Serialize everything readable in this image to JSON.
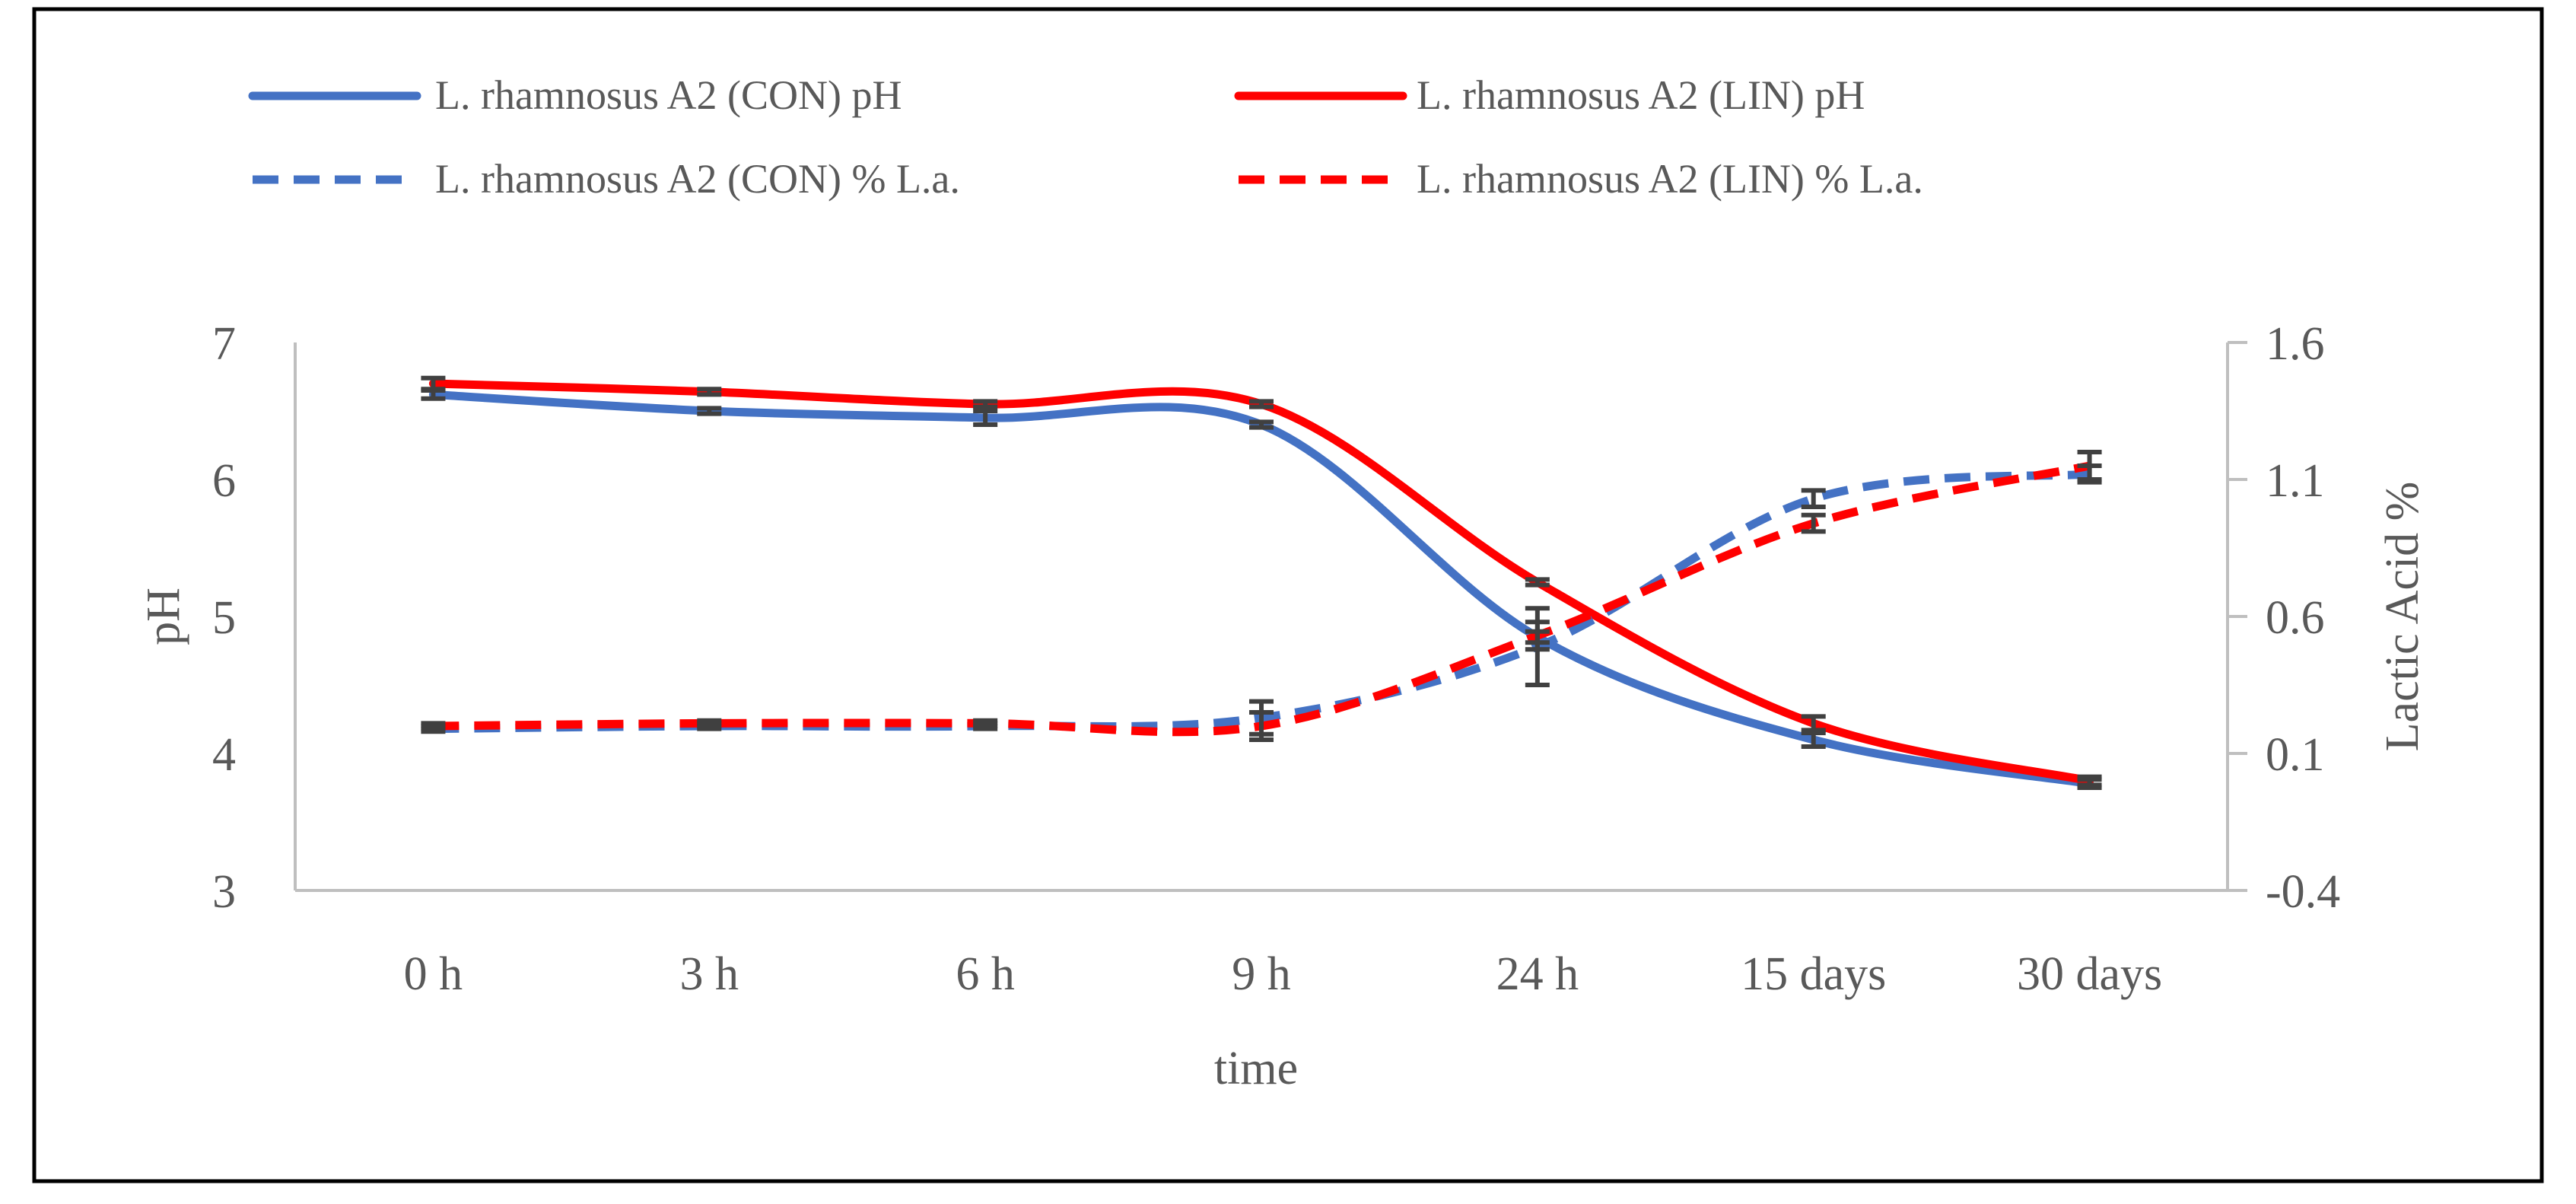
{
  "chart_data": {
    "type": "line",
    "categories": [
      "0 h",
      "3 h",
      "6 h",
      "9 h",
      "24 h",
      "15 days",
      "30 days"
    ],
    "xlabel": "time",
    "ylabel": "pH",
    "y2label": "Lactic Acid %",
    "ylim": [
      3,
      7
    ],
    "y2lim": [
      -0.4,
      1.6
    ],
    "yticks": [
      "3",
      "4",
      "5",
      "6",
      "7"
    ],
    "y2ticks": [
      "-0.4",
      "0.1",
      "0.6",
      "1.1",
      "1.6"
    ],
    "grid": false,
    "legend_position": "top",
    "series": [
      {
        "name": "L. rhamnosus A2 (CON) pH",
        "axis": "left",
        "style": "solid",
        "color": "#4472C4",
        "values": [
          6.62,
          6.5,
          6.45,
          6.4,
          4.85,
          4.1,
          3.78
        ],
        "errors": [
          0.03,
          0.02,
          0.05,
          0.02,
          0.04,
          0.05,
          0.03
        ]
      },
      {
        "name": "L. rhamnosus A2 (LIN) pH",
        "axis": "left",
        "style": "solid",
        "color": "#FF0000",
        "values": [
          6.7,
          6.64,
          6.55,
          6.55,
          5.25,
          4.22,
          3.8
        ],
        "errors": [
          0.04,
          0.02,
          0.02,
          0.02,
          0.02,
          0.05,
          0.03
        ]
      },
      {
        "name": "L. rhamnosus A2 (CON) % L.a.",
        "axis": "right",
        "style": "dashed",
        "color": "#4472C4",
        "values": [
          0.19,
          0.2,
          0.2,
          0.23,
          0.49,
          1.03,
          1.12
        ],
        "errors": [
          0.01,
          0.01,
          0.01,
          0.06,
          0.14,
          0.03,
          0.03
        ]
      },
      {
        "name": "L. rhamnosus A2 (LIN) % L.a.",
        "axis": "right",
        "style": "dashed",
        "color": "#FF0000",
        "values": [
          0.2,
          0.21,
          0.21,
          0.2,
          0.53,
          0.94,
          1.15
        ],
        "errors": [
          0.01,
          0.01,
          0.01,
          0.05,
          0.05,
          0.03,
          0.05
        ]
      }
    ]
  }
}
